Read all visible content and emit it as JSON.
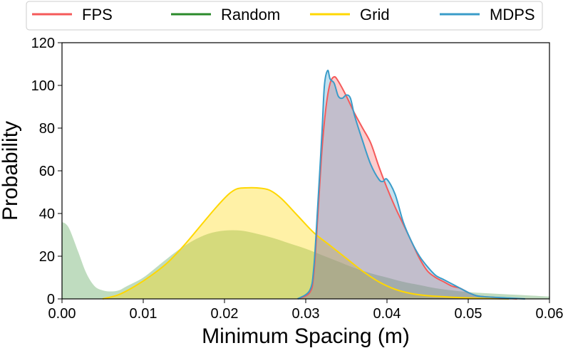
{
  "chart_data": {
    "type": "area",
    "xlabel": "Minimum Spacing (m)",
    "ylabel": "Probability",
    "xlim": [
      0.0,
      0.06
    ],
    "ylim": [
      0,
      120
    ],
    "xticks": [
      "0.00",
      "0.01",
      "0.02",
      "0.03",
      "0.04",
      "0.05",
      "0.06"
    ],
    "yticks": [
      "0",
      "20",
      "40",
      "60",
      "80",
      "100",
      "120"
    ],
    "grid": false,
    "legend": {
      "placement": "top-center",
      "columns": 4
    },
    "series": [
      {
        "name": "FPS",
        "color": "#f55a5a",
        "fill_opacity": 0.3,
        "points": [
          [
            0.029,
            0
          ],
          [
            0.0305,
            3
          ],
          [
            0.031,
            12
          ],
          [
            0.0315,
            40
          ],
          [
            0.032,
            70
          ],
          [
            0.0325,
            90
          ],
          [
            0.033,
            101
          ],
          [
            0.0335,
            104
          ],
          [
            0.034,
            102
          ],
          [
            0.035,
            95
          ],
          [
            0.036,
            87
          ],
          [
            0.037,
            80
          ],
          [
            0.038,
            73
          ],
          [
            0.039,
            62
          ],
          [
            0.04,
            52
          ],
          [
            0.041,
            43
          ],
          [
            0.042,
            35
          ],
          [
            0.043,
            27
          ],
          [
            0.044,
            19
          ],
          [
            0.045,
            13
          ],
          [
            0.046,
            10
          ],
          [
            0.047,
            8
          ],
          [
            0.048,
            6
          ],
          [
            0.049,
            5
          ],
          [
            0.05,
            3
          ],
          [
            0.051,
            1.5
          ],
          [
            0.052,
            1
          ],
          [
            0.054,
            0.5
          ],
          [
            0.056,
            0
          ]
        ]
      },
      {
        "name": "Random",
        "color": "#2a8a2a",
        "fill_opacity": 0.3,
        "points": [
          [
            0.0,
            36
          ],
          [
            0.0005,
            35
          ],
          [
            0.001,
            32
          ],
          [
            0.002,
            22
          ],
          [
            0.003,
            12
          ],
          [
            0.004,
            6
          ],
          [
            0.005,
            4
          ],
          [
            0.006,
            3.5
          ],
          [
            0.007,
            4
          ],
          [
            0.008,
            6
          ],
          [
            0.01,
            10
          ],
          [
            0.012,
            16
          ],
          [
            0.014,
            22
          ],
          [
            0.016,
            27
          ],
          [
            0.018,
            30.5
          ],
          [
            0.02,
            32
          ],
          [
            0.022,
            32
          ],
          [
            0.024,
            30.5
          ],
          [
            0.026,
            28.5
          ],
          [
            0.028,
            26
          ],
          [
            0.03,
            23.5
          ],
          [
            0.032,
            20.5
          ],
          [
            0.034,
            17.5
          ],
          [
            0.036,
            14.5
          ],
          [
            0.038,
            12
          ],
          [
            0.04,
            10
          ],
          [
            0.042,
            8
          ],
          [
            0.044,
            6.5
          ],
          [
            0.046,
            5
          ],
          [
            0.048,
            4
          ],
          [
            0.05,
            3.2
          ],
          [
            0.052,
            2.7
          ],
          [
            0.054,
            2.3
          ],
          [
            0.056,
            1.9
          ],
          [
            0.058,
            1.5
          ],
          [
            0.06,
            1.1
          ]
        ]
      },
      {
        "name": "Grid",
        "color": "#ffd700",
        "fill_opacity": 0.35,
        "points": [
          [
            0.005,
            0
          ],
          [
            0.007,
            2
          ],
          [
            0.009,
            6
          ],
          [
            0.011,
            11
          ],
          [
            0.013,
            17
          ],
          [
            0.015,
            25
          ],
          [
            0.017,
            34
          ],
          [
            0.019,
            43
          ],
          [
            0.0205,
            49
          ],
          [
            0.0215,
            51.5
          ],
          [
            0.0225,
            52
          ],
          [
            0.024,
            52
          ],
          [
            0.0255,
            51
          ],
          [
            0.027,
            47
          ],
          [
            0.029,
            39
          ],
          [
            0.031,
            31
          ],
          [
            0.033,
            25
          ],
          [
            0.035,
            19
          ],
          [
            0.037,
            13
          ],
          [
            0.039,
            8
          ],
          [
            0.041,
            4.5
          ],
          [
            0.043,
            2.5
          ],
          [
            0.045,
            1.5
          ],
          [
            0.047,
            1
          ],
          [
            0.049,
            0.6
          ],
          [
            0.052,
            0.2
          ],
          [
            0.055,
            0
          ]
        ]
      },
      {
        "name": "MDPS",
        "color": "#3a9cc9",
        "fill_opacity": 0.3,
        "points": [
          [
            0.029,
            0
          ],
          [
            0.0305,
            4
          ],
          [
            0.031,
            15
          ],
          [
            0.0315,
            45
          ],
          [
            0.032,
            78
          ],
          [
            0.0323,
            100
          ],
          [
            0.0327,
            107
          ],
          [
            0.033,
            103
          ],
          [
            0.0335,
            101
          ],
          [
            0.034,
            95
          ],
          [
            0.0345,
            94
          ],
          [
            0.035,
            95.5
          ],
          [
            0.0355,
            94
          ],
          [
            0.036,
            86
          ],
          [
            0.037,
            74
          ],
          [
            0.038,
            63
          ],
          [
            0.039,
            56
          ],
          [
            0.0395,
            55
          ],
          [
            0.04,
            56
          ],
          [
            0.041,
            49
          ],
          [
            0.042,
            36
          ],
          [
            0.043,
            27
          ],
          [
            0.044,
            20
          ],
          [
            0.045,
            15
          ],
          [
            0.046,
            11
          ],
          [
            0.047,
            9
          ],
          [
            0.048,
            7
          ],
          [
            0.049,
            5
          ],
          [
            0.05,
            3
          ],
          [
            0.051,
            1.5
          ],
          [
            0.052,
            1
          ],
          [
            0.055,
            0.4
          ],
          [
            0.057,
            0
          ]
        ]
      }
    ]
  }
}
